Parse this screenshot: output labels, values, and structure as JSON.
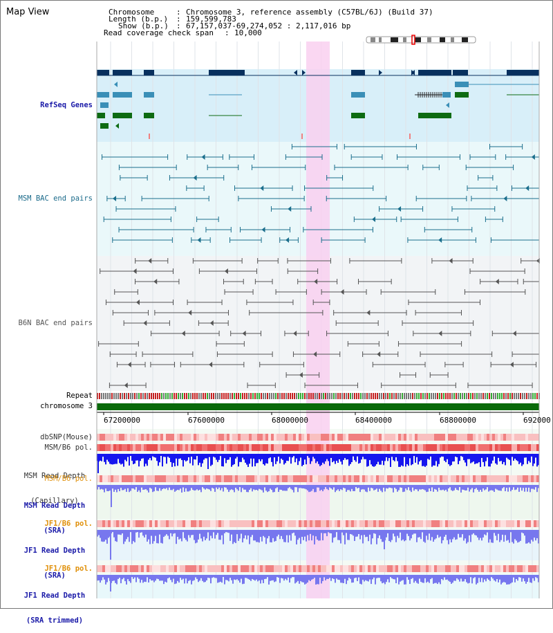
{
  "app": {
    "title": "Map View"
  },
  "header": {
    "chromosome_key": "Chromosome",
    "chromosome_value": "Chromosome 3, reference assembly (C57BL/6J) (Build 37)",
    "length_key": "Length (b.p.)",
    "length_value": "159,599,783",
    "show_key": "Show (b.p.)",
    "show_value": "67,157,037-69,274,052 : 2,117,016 bp",
    "coverage_key": "Read coverage check span",
    "coverage_value": "10,000"
  },
  "tracks": {
    "refseq": "RefSeq Genes",
    "msm_bac": "MSM BAC end pairs",
    "b6n_bac": "B6N BAC end pairs",
    "repeat": "Repeat",
    "chromosome": "chromosome 3",
    "dbsnp": "dbSNP(Mouse)",
    "msm_b6_pol": "MSM/B6 pol.",
    "msm_read_depth_cap_1": "MSM Read Depth",
    "msm_read_depth_cap_2": "(Capillary)",
    "msm_b6_pol_2": "MSM/B6 pol.",
    "msm_read_depth_sra_1": "MSM Read Depth",
    "msm_read_depth_sra_2": "(SRA)",
    "jf1_b6_pol": "JF1/B6 pol.",
    "jf1_read_depth_sra_1": "JF1 Read Depth",
    "jf1_read_depth_sra_2": "(SRA)",
    "jf1_b6_pol_2": "JF1/B6 pol.",
    "jf1_read_depth_trim_1": "JF1 Read Depth",
    "jf1_read_depth_trim_2": "(SRA trimmed)"
  },
  "axis": {
    "ticks": [
      "67200000",
      "67600000",
      "68000000",
      "68400000",
      "68800000",
      "692000"
    ]
  },
  "colors": {
    "highlight": "#f9d0f0",
    "refseq_bg": "#d8eff9",
    "msm_bg": "#eaf8fa",
    "b6n_bg": "#f2f4f6",
    "navy": "#08305e",
    "teal": "#3a8fb7",
    "green": "#0e6b12",
    "msm_line": "#1a6e8c",
    "gray_line": "#555555",
    "chromosome": "#0a6a0a",
    "label_blue": "#1a1aa8",
    "label_teal": "#1a6a8a",
    "label_orange": "#e0900a",
    "depth_blue": "#1616ee",
    "depth_light": "#7777ee"
  }
}
